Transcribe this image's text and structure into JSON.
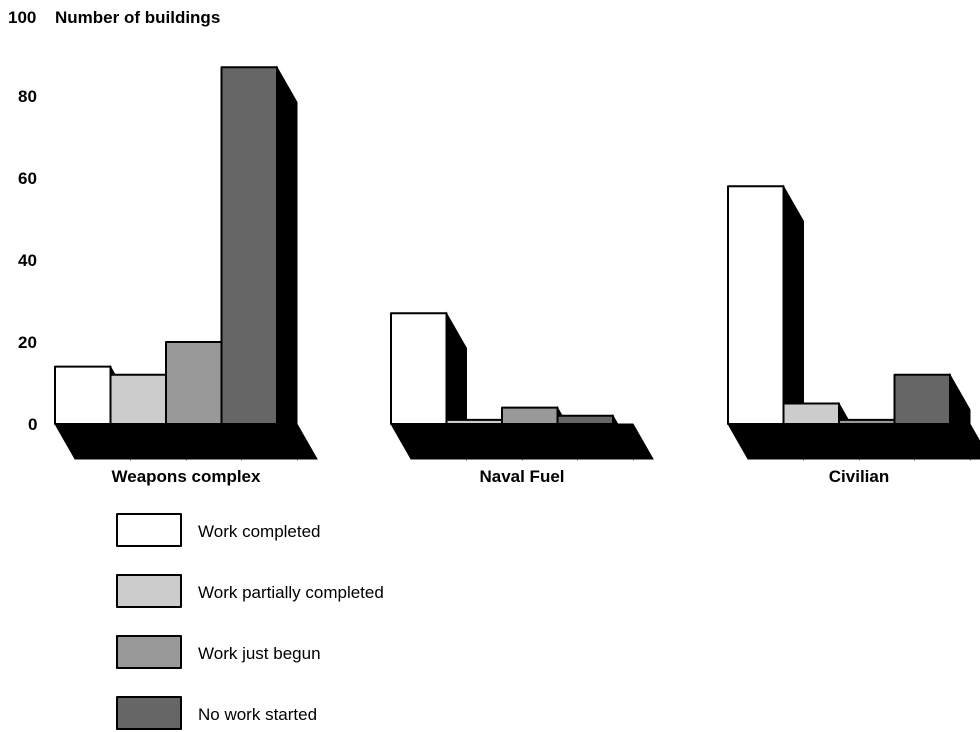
{
  "chart_data": {
    "type": "bar",
    "title": "",
    "ylabel": "Number of buildings",
    "xlabel": "",
    "ylim": [
      0,
      100
    ],
    "yticks": [
      0,
      20,
      40,
      60,
      80,
      100
    ],
    "categories": [
      "Weapons complex",
      "Naval Fuel",
      "Civilian"
    ],
    "series": [
      {
        "name": "Work completed",
        "color": "#ffffff",
        "values": [
          14,
          27,
          58
        ]
      },
      {
        "name": "Work partially completed",
        "color": "#cccccc",
        "values": [
          12,
          1,
          5
        ]
      },
      {
        "name": "Work just begun",
        "color": "#999999",
        "values": [
          20,
          4,
          1
        ]
      },
      {
        "name": "No work started",
        "color": "#666666",
        "values": [
          87,
          2,
          12
        ]
      }
    ],
    "grid": false,
    "legend_position": "bottom-left"
  }
}
